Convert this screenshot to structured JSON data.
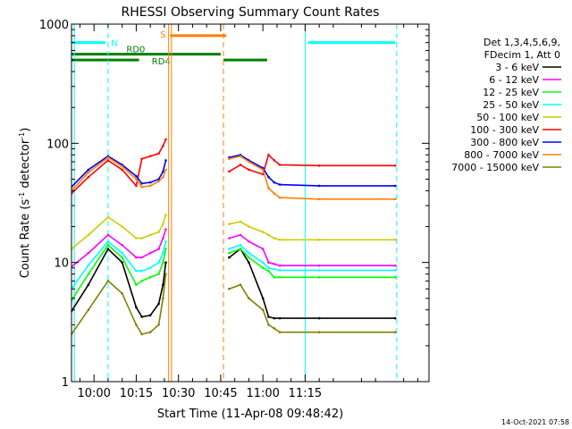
{
  "chart_data": {
    "type": "line",
    "title": "RHESSI Observing Summary Count Rates",
    "xlabel": "Start Time (11-Apr-08 09:48:42)",
    "ylabel_main": "Count Rate (s",
    "ylabel_sup1": "-1",
    "ylabel_mid": " detector",
    "ylabel_sup2": "-1",
    "ylabel_end": ")",
    "yscale": "log",
    "ylim": [
      1,
      1000
    ],
    "xlim_min": [
      592,
      719
    ],
    "ytick_values": [
      1,
      10,
      100,
      1000
    ],
    "ytick_labels": [
      "1",
      "10",
      "100",
      "1000"
    ],
    "xtick_values": [
      600,
      615,
      630,
      645,
      660,
      675
    ],
    "xtick_labels": [
      "10:00",
      "10:15",
      "10:30",
      "10:45",
      "11:00",
      "11:15"
    ],
    "timestamp": "14-Oct-2021 07:58",
    "legend_header": [
      "Det 1,3,4,5,6,9,",
      "FDecim 1, Att 0"
    ],
    "series": [
      {
        "name": "3 - 6 keV",
        "color": "#000000",
        "x": [
          592,
          598,
          605,
          610,
          615,
          617,
          620,
          623,
          624.5,
          625.5,
          646,
          648,
          652,
          655,
          660,
          662,
          664,
          666,
          680,
          707
        ],
        "y": [
          3.9,
          6.5,
          13,
          10,
          4.2,
          3.5,
          3.6,
          4.5,
          6.5,
          10,
          null,
          11,
          13,
          10,
          5,
          3.5,
          3.4,
          3.4,
          3.4,
          3.4
        ]
      },
      {
        "name": "6 - 12 keV",
        "color": "#ff00ff",
        "x": [
          592,
          598,
          605,
          610,
          615,
          617,
          620,
          623,
          624.5,
          625.5,
          646,
          648,
          652,
          655,
          660,
          662,
          664,
          666,
          680,
          707
        ],
        "y": [
          9.2,
          12,
          17,
          14,
          11,
          11,
          12,
          13,
          16,
          19,
          null,
          16,
          17,
          15,
          13,
          10,
          9.7,
          9.4,
          9.4,
          9.4
        ]
      },
      {
        "name": "12 - 25 keV",
        "color": "#00ff00",
        "x": [
          592,
          598,
          605,
          610,
          615,
          617,
          620,
          623,
          624.5,
          625.5,
          646,
          648,
          652,
          655,
          660,
          662,
          664,
          666,
          680,
          707
        ],
        "y": [
          4.8,
          8,
          14,
          11,
          6.5,
          7,
          7.5,
          8,
          10,
          13,
          null,
          12,
          13,
          11,
          9,
          8.5,
          7.5,
          7.5,
          7.5,
          7.5
        ]
      },
      {
        "name": "25 - 50 keV",
        "color": "#00ffff",
        "x": [
          592,
          598,
          605,
          610,
          615,
          617,
          620,
          623,
          624.5,
          625.5,
          646,
          648,
          652,
          655,
          660,
          662,
          664,
          666,
          680,
          707
        ],
        "y": [
          6,
          9.5,
          15,
          12,
          8.5,
          8.5,
          9,
          10,
          12,
          15,
          null,
          13,
          14,
          12,
          10,
          9,
          8.8,
          8.6,
          8.6,
          8.6
        ]
      },
      {
        "name": "50 - 100 keV",
        "color": "#cccc00",
        "x": [
          592,
          598,
          605,
          610,
          615,
          617,
          620,
          623,
          624.5,
          625.5,
          646,
          648,
          652,
          655,
          660,
          662,
          664,
          666,
          680,
          707
        ],
        "y": [
          13,
          17,
          24,
          20,
          16,
          16,
          17,
          18,
          21,
          25,
          null,
          21,
          22,
          20,
          18,
          17,
          16,
          15.5,
          15.5,
          15.5
        ]
      },
      {
        "name": "100 - 300 keV",
        "color": "#ff0000",
        "x": [
          592,
          598,
          605,
          610,
          615,
          617,
          620,
          623,
          624.5,
          625.5,
          646,
          648,
          652,
          655,
          660,
          662,
          664,
          666,
          680,
          707
        ],
        "y": [
          38,
          52,
          72,
          60,
          44,
          74,
          78,
          82,
          95,
          108,
          null,
          58,
          66,
          60,
          55,
          80,
          72,
          66,
          65,
          65
        ]
      },
      {
        "name": "300 - 800 keV",
        "color": "#0000ff",
        "x": [
          592,
          598,
          605,
          610,
          615,
          617,
          620,
          623,
          624.5,
          625.5,
          646,
          648,
          652,
          655,
          660,
          662,
          664,
          666,
          680,
          707
        ],
        "y": [
          43,
          60,
          78,
          66,
          53,
          46,
          47,
          50,
          58,
          72,
          null,
          76,
          80,
          72,
          62,
          52,
          47,
          45,
          44,
          44
        ]
      },
      {
        "name": "800 - 7000 keV",
        "color": "#ff8000",
        "x": [
          592,
          598,
          605,
          610,
          615,
          617,
          620,
          623,
          624.5,
          625.5,
          646,
          648,
          652,
          655,
          660,
          662,
          664,
          666,
          680,
          707
        ],
        "y": [
          40,
          57,
          76,
          64,
          50,
          43,
          44,
          48,
          52,
          60,
          null,
          74,
          78,
          70,
          60,
          42,
          38,
          35,
          34,
          34
        ]
      },
      {
        "name": "7000 - 15000 keV",
        "color": "#808000",
        "x": [
          592,
          598,
          605,
          610,
          615,
          617,
          620,
          623,
          624.5,
          625.5,
          646,
          648,
          652,
          655,
          660,
          662,
          664,
          666,
          680,
          707
        ],
        "y": [
          2.5,
          4,
          7,
          5.5,
          3,
          2.5,
          2.6,
          3,
          5,
          8,
          null,
          6,
          6.5,
          5,
          4,
          3,
          2.8,
          2.6,
          2.6,
          2.6
        ]
      }
    ],
    "attenuator_lines": [
      {
        "label": "N",
        "color": "#00ffff",
        "y": 700,
        "segments": [
          [
            592,
            604
          ],
          [
            676,
            707
          ]
        ]
      },
      {
        "label": "S",
        "color": "#ff8000",
        "y": 800,
        "segments": [
          [
            627,
            647
          ]
        ]
      },
      {
        "label": "RD0",
        "color": "#008000",
        "y": 560,
        "segments": [
          [
            592,
            645
          ]
        ]
      },
      {
        "label": "RD4",
        "color": "#008000",
        "y": 500,
        "segments": [
          [
            592,
            616
          ],
          [
            646,
            661.5
          ]
        ]
      }
    ],
    "vertical_markers": [
      {
        "x": 605,
        "color": "#00ffff",
        "style": "dashed"
      },
      {
        "x": 675,
        "color": "#00ffff",
        "style": "solid"
      },
      {
        "x": 707.5,
        "color": "#00ffff",
        "style": "dashed"
      },
      {
        "x": 626.5,
        "color": "#ff8000",
        "style": "solid"
      },
      {
        "x": 627.5,
        "color": "#ff8000",
        "style": "solid"
      },
      {
        "x": 646,
        "color": "#ff8000",
        "style": "dashed"
      },
      {
        "x": 593,
        "color": "#00ffff",
        "style": "solid"
      }
    ],
    "grid": false,
    "legend_placement": "right"
  }
}
